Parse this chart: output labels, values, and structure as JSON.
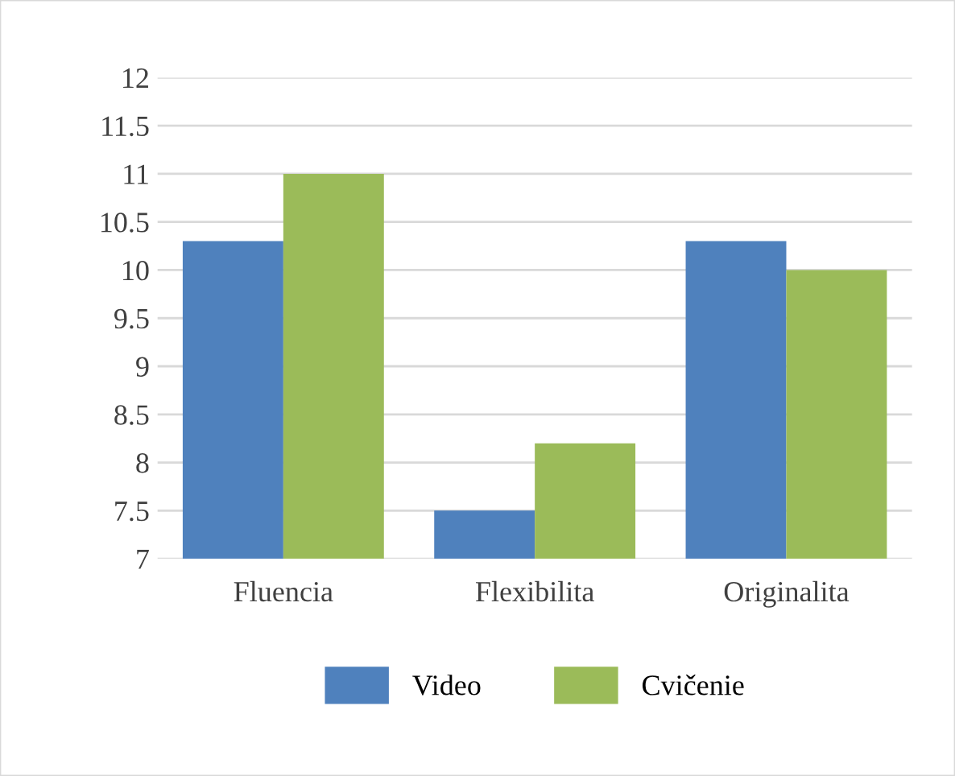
{
  "chart_data": {
    "type": "bar",
    "categories": [
      "Fluencia",
      "Flexibilita",
      "Originalita"
    ],
    "series": [
      {
        "name": "Video",
        "color": "#4f81bd",
        "values": [
          10.3,
          7.5,
          10.3
        ]
      },
      {
        "name": "Cvičenie",
        "color": "#9bbb59",
        "values": [
          11,
          8.2,
          10
        ]
      }
    ],
    "ylim": [
      7,
      12
    ],
    "yticks": [
      7,
      7.5,
      8,
      8.5,
      9,
      9.5,
      10,
      10.5,
      11,
      11.5,
      12
    ],
    "grid": "y",
    "legend": "bottom"
  }
}
